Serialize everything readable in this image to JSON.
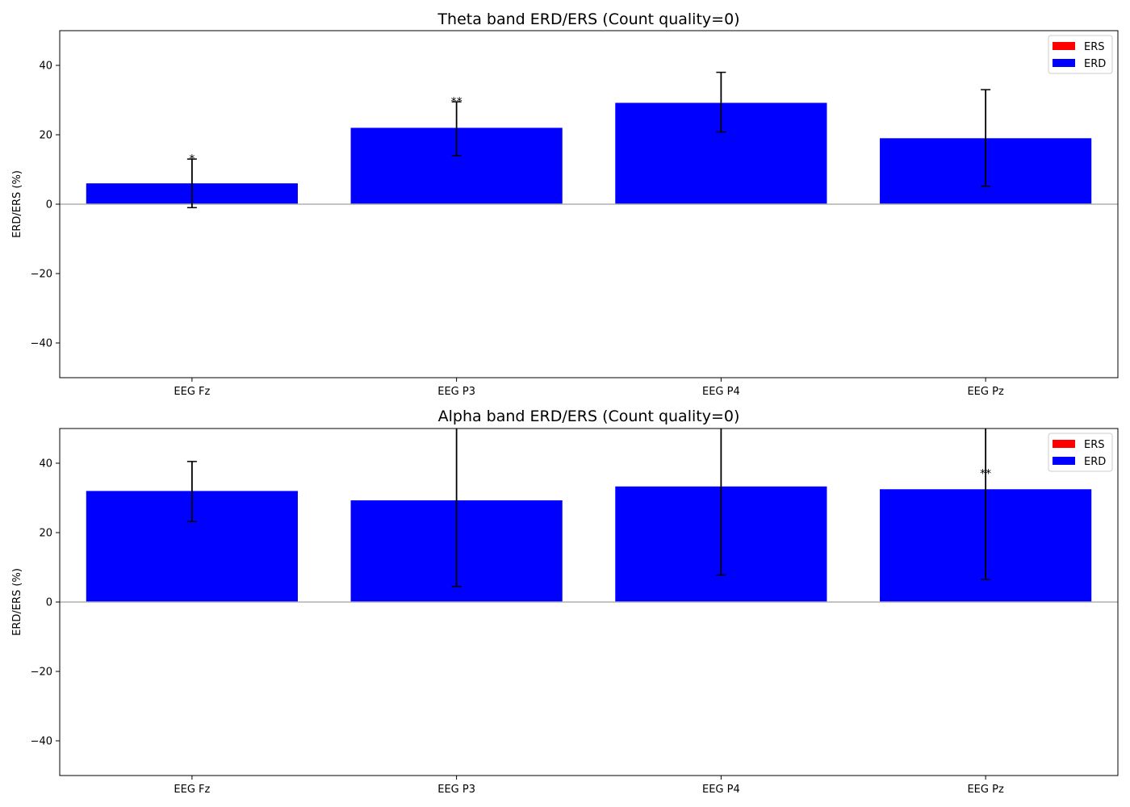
{
  "chart_data": [
    {
      "type": "bar",
      "title": "Theta band ERD/ERS (Count quality=0)",
      "xlabel": "",
      "ylabel": "ERD/ERS (%)",
      "ylim": [
        -50,
        50
      ],
      "yticks": [
        -40,
        -20,
        0,
        20,
        40
      ],
      "yticklabels": [
        "−40",
        "−20",
        "0",
        "20",
        "40"
      ],
      "categories": [
        "EEG Fz",
        "EEG P3",
        "EEG P4",
        "EEG Pz"
      ],
      "values": [
        6,
        22,
        29.2,
        19
      ],
      "error_low": [
        -1,
        14,
        20.8,
        5.2
      ],
      "error_high": [
        13,
        29.5,
        38,
        33
      ],
      "significance": [
        "*",
        "**",
        "",
        ""
      ],
      "colors": {
        "ERS": "#ff0000",
        "ERD": "#0000ff",
        "zero_line": "#b0b0b0"
      },
      "grid": false,
      "legend_position": "top-right",
      "legend": [
        {
          "label": "ERS",
          "color": "#ff0000"
        },
        {
          "label": "ERD",
          "color": "#0000ff"
        }
      ]
    },
    {
      "type": "bar",
      "title": "Alpha band ERD/ERS (Count quality=0)",
      "xlabel": "",
      "ylabel": "ERD/ERS (%)",
      "ylim": [
        -50,
        50
      ],
      "yticks": [
        -40,
        -20,
        0,
        20,
        40
      ],
      "yticklabels": [
        "−40",
        "−20",
        "0",
        "20",
        "40"
      ],
      "categories": [
        "EEG Fz",
        "EEG P3",
        "EEG P4",
        "EEG Pz"
      ],
      "values": [
        32,
        29.3,
        33.3,
        32.5
      ],
      "error_low": [
        23.2,
        4.5,
        7.8,
        6.5
      ],
      "error_high": [
        40.5,
        54,
        59,
        58.5
      ],
      "significance": [
        "",
        "",
        "",
        "**"
      ],
      "colors": {
        "ERS": "#ff0000",
        "ERD": "#0000ff",
        "zero_line": "#b0b0b0"
      },
      "grid": false,
      "legend_position": "top-right",
      "legend": [
        {
          "label": "ERS",
          "color": "#ff0000"
        },
        {
          "label": "ERD",
          "color": "#0000ff"
        }
      ]
    }
  ]
}
